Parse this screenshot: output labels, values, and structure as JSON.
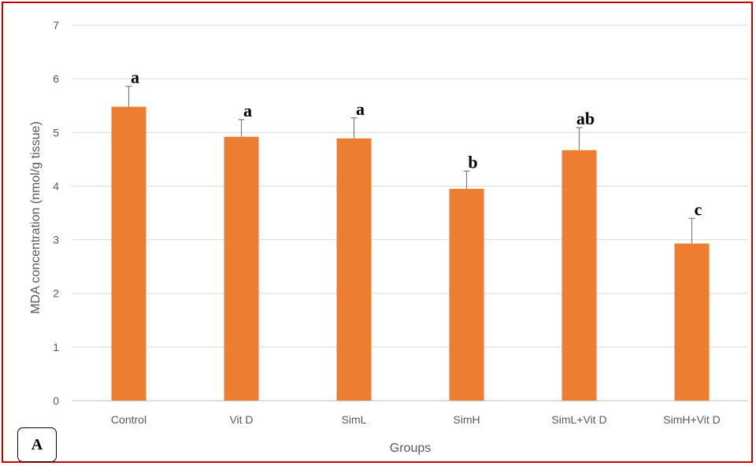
{
  "chart_data": {
    "type": "bar",
    "categories": [
      "Control",
      "Vit D",
      "SimL",
      "SimH",
      "SimL+Vit D",
      "SimH+Vit D"
    ],
    "values": [
      5.48,
      4.92,
      4.89,
      3.95,
      4.67,
      2.93
    ],
    "error_plus": [
      0.38,
      0.32,
      0.38,
      0.33,
      0.42,
      0.47
    ],
    "significance_labels": [
      "a",
      "a",
      "a",
      "b",
      "ab",
      "c"
    ],
    "xlabel": "Groups",
    "ylabel": "MDA concentration (nmol/g tissue)",
    "ylim": [
      0,
      7
    ],
    "yticks": [
      0,
      1,
      2,
      3,
      4,
      5,
      6,
      7
    ],
    "grid": true,
    "bar_color": "#ED7D31",
    "panel_label": "A"
  }
}
